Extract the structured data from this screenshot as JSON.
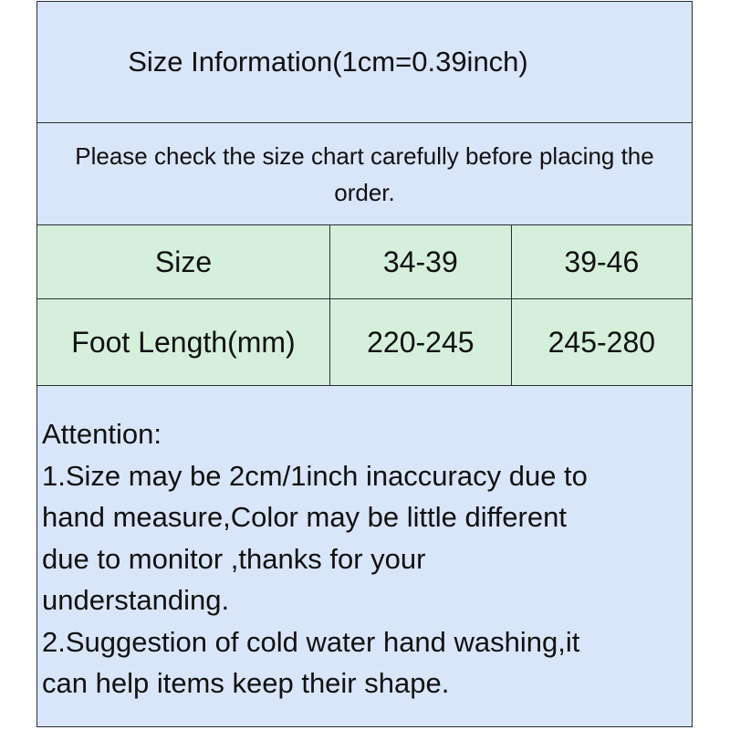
{
  "title": "Size Information(1cm=0.39inch)",
  "notice": "Please check the size chart carefully before placing the order.",
  "table": {
    "rows": [
      {
        "label": "Size",
        "values": [
          "34-39",
          "39-46"
        ]
      },
      {
        "label": "Foot Length(mm)",
        "values": [
          "220-245",
          "245-280"
        ]
      }
    ]
  },
  "attention": {
    "heading": "Attention:",
    "lines": [
      "1.Size may be 2cm/1inch inaccuracy due to",
      "hand measure,Color may be little different",
      "due to monitor ,thanks for your",
      "understanding.",
      "2.Suggestion of cold water hand washing,it",
      "can help items keep their shape."
    ]
  },
  "colors": {
    "header_bg": "#d9e5f9",
    "table_bg": "#d5efdb",
    "border": "#2a2e33"
  }
}
